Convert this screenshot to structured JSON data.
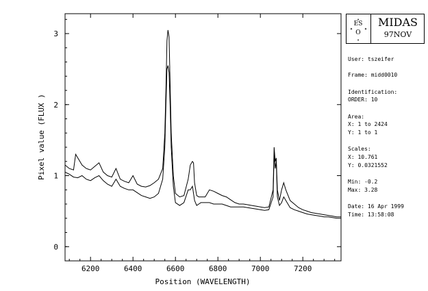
{
  "chart_data": {
    "type": "line",
    "title": "",
    "xlabel": "Position (WAVELENGTH)",
    "ylabel": "Pixel value (FLUX )",
    "xlim": [
      6080,
      7380
    ],
    "ylim": [
      -0.2,
      3.28
    ],
    "x_ticks": [
      6200,
      6400,
      6600,
      6800,
      7000,
      7200
    ],
    "y_ticks": [
      0,
      1,
      2,
      3
    ],
    "grid": false,
    "legend": "none",
    "series": [
      {
        "color": "#000000",
        "x": [
          6080,
          6100,
          6120,
          6130,
          6160,
          6180,
          6200,
          6220,
          6240,
          6260,
          6280,
          6300,
          6320,
          6340,
          6360,
          6380,
          6400,
          6420,
          6440,
          6460,
          6480,
          6500,
          6520,
          6540,
          6550,
          6555,
          6560,
          6565,
          6570,
          6575,
          6580,
          6590,
          6600,
          6620,
          6640,
          6660,
          6670,
          6680,
          6685,
          6690,
          6700,
          6710,
          6720,
          6740,
          6760,
          6780,
          6800,
          6820,
          6840,
          6860,
          6880,
          6900,
          6920,
          6940,
          6960,
          6980,
          7000,
          7020,
          7040,
          7060,
          7065,
          7070,
          7075,
          7080,
          7090,
          7100,
          7110,
          7120,
          7140,
          7160,
          7180,
          7200,
          7220,
          7240,
          7260,
          7280,
          7300,
          7320,
          7340,
          7360,
          7380
        ],
        "values": [
          1.15,
          1.1,
          1.08,
          1.3,
          1.15,
          1.1,
          1.08,
          1.13,
          1.18,
          1.05,
          1.0,
          0.98,
          1.1,
          0.95,
          0.92,
          0.9,
          1.0,
          0.88,
          0.85,
          0.84,
          0.86,
          0.9,
          0.95,
          1.1,
          1.6,
          2.2,
          2.9,
          3.05,
          2.95,
          2.3,
          1.6,
          1.0,
          0.75,
          0.7,
          0.72,
          0.95,
          1.15,
          1.2,
          1.18,
          0.9,
          0.72,
          0.7,
          0.7,
          0.7,
          0.8,
          0.78,
          0.75,
          0.72,
          0.7,
          0.66,
          0.62,
          0.6,
          0.6,
          0.59,
          0.58,
          0.57,
          0.56,
          0.55,
          0.56,
          0.8,
          1.4,
          1.2,
          1.25,
          0.8,
          0.65,
          0.8,
          0.9,
          0.8,
          0.65,
          0.6,
          0.55,
          0.52,
          0.5,
          0.48,
          0.47,
          0.46,
          0.45,
          0.44,
          0.43,
          0.42,
          0.42
        ]
      },
      {
        "color": "#000000",
        "x": [
          6080,
          6100,
          6120,
          6140,
          6160,
          6180,
          6200,
          6220,
          6240,
          6260,
          6280,
          6300,
          6320,
          6340,
          6360,
          6380,
          6400,
          6420,
          6440,
          6460,
          6480,
          6500,
          6520,
          6540,
          6550,
          6555,
          6560,
          6565,
          6570,
          6575,
          6580,
          6590,
          6600,
          6620,
          6640,
          6660,
          6670,
          6680,
          6685,
          6690,
          6700,
          6710,
          6720,
          6740,
          6760,
          6780,
          6800,
          6820,
          6840,
          6860,
          6880,
          6900,
          6920,
          6940,
          6960,
          6980,
          7000,
          7020,
          7040,
          7060,
          7065,
          7070,
          7075,
          7080,
          7090,
          7100,
          7110,
          7120,
          7140,
          7160,
          7180,
          7200,
          7220,
          7240,
          7260,
          7280,
          7300,
          7320,
          7340,
          7360,
          7380
        ],
        "values": [
          1.05,
          1.02,
          0.98,
          0.97,
          1.0,
          0.95,
          0.93,
          0.97,
          1.0,
          0.93,
          0.88,
          0.85,
          0.95,
          0.85,
          0.82,
          0.8,
          0.8,
          0.76,
          0.72,
          0.7,
          0.68,
          0.7,
          0.75,
          0.95,
          1.4,
          2.0,
          2.5,
          2.55,
          2.45,
          2.0,
          1.4,
          0.85,
          0.62,
          0.58,
          0.62,
          0.8,
          0.8,
          0.85,
          0.75,
          0.65,
          0.58,
          0.6,
          0.62,
          0.62,
          0.62,
          0.6,
          0.6,
          0.6,
          0.58,
          0.56,
          0.56,
          0.56,
          0.56,
          0.55,
          0.54,
          0.53,
          0.52,
          0.51,
          0.52,
          0.7,
          1.3,
          1.1,
          1.2,
          0.7,
          0.58,
          0.62,
          0.7,
          0.65,
          0.55,
          0.52,
          0.5,
          0.48,
          0.46,
          0.45,
          0.44,
          0.43,
          0.42,
          0.42,
          0.41,
          0.4,
          0.4
        ]
      }
    ]
  },
  "panel": {
    "logo_text": "ES O",
    "title": "MIDAS",
    "version": "97NOV",
    "user": "User: tszeifer",
    "frame": "Frame: midd0010",
    "identification": "Identification:",
    "order": "ORDER: 10",
    "area_label": "Area:",
    "area_x": "X: 1 to 2424",
    "area_y": "Y: 1 to 1",
    "scales_label": "Scales:",
    "scale_x": "X: 10.761",
    "scale_y": "Y: 0.0321552",
    "min": "Min: -0.2",
    "max": "Max: 3.28",
    "date": "Date: 16 Apr 1999",
    "time": "Time: 13:58:08"
  }
}
